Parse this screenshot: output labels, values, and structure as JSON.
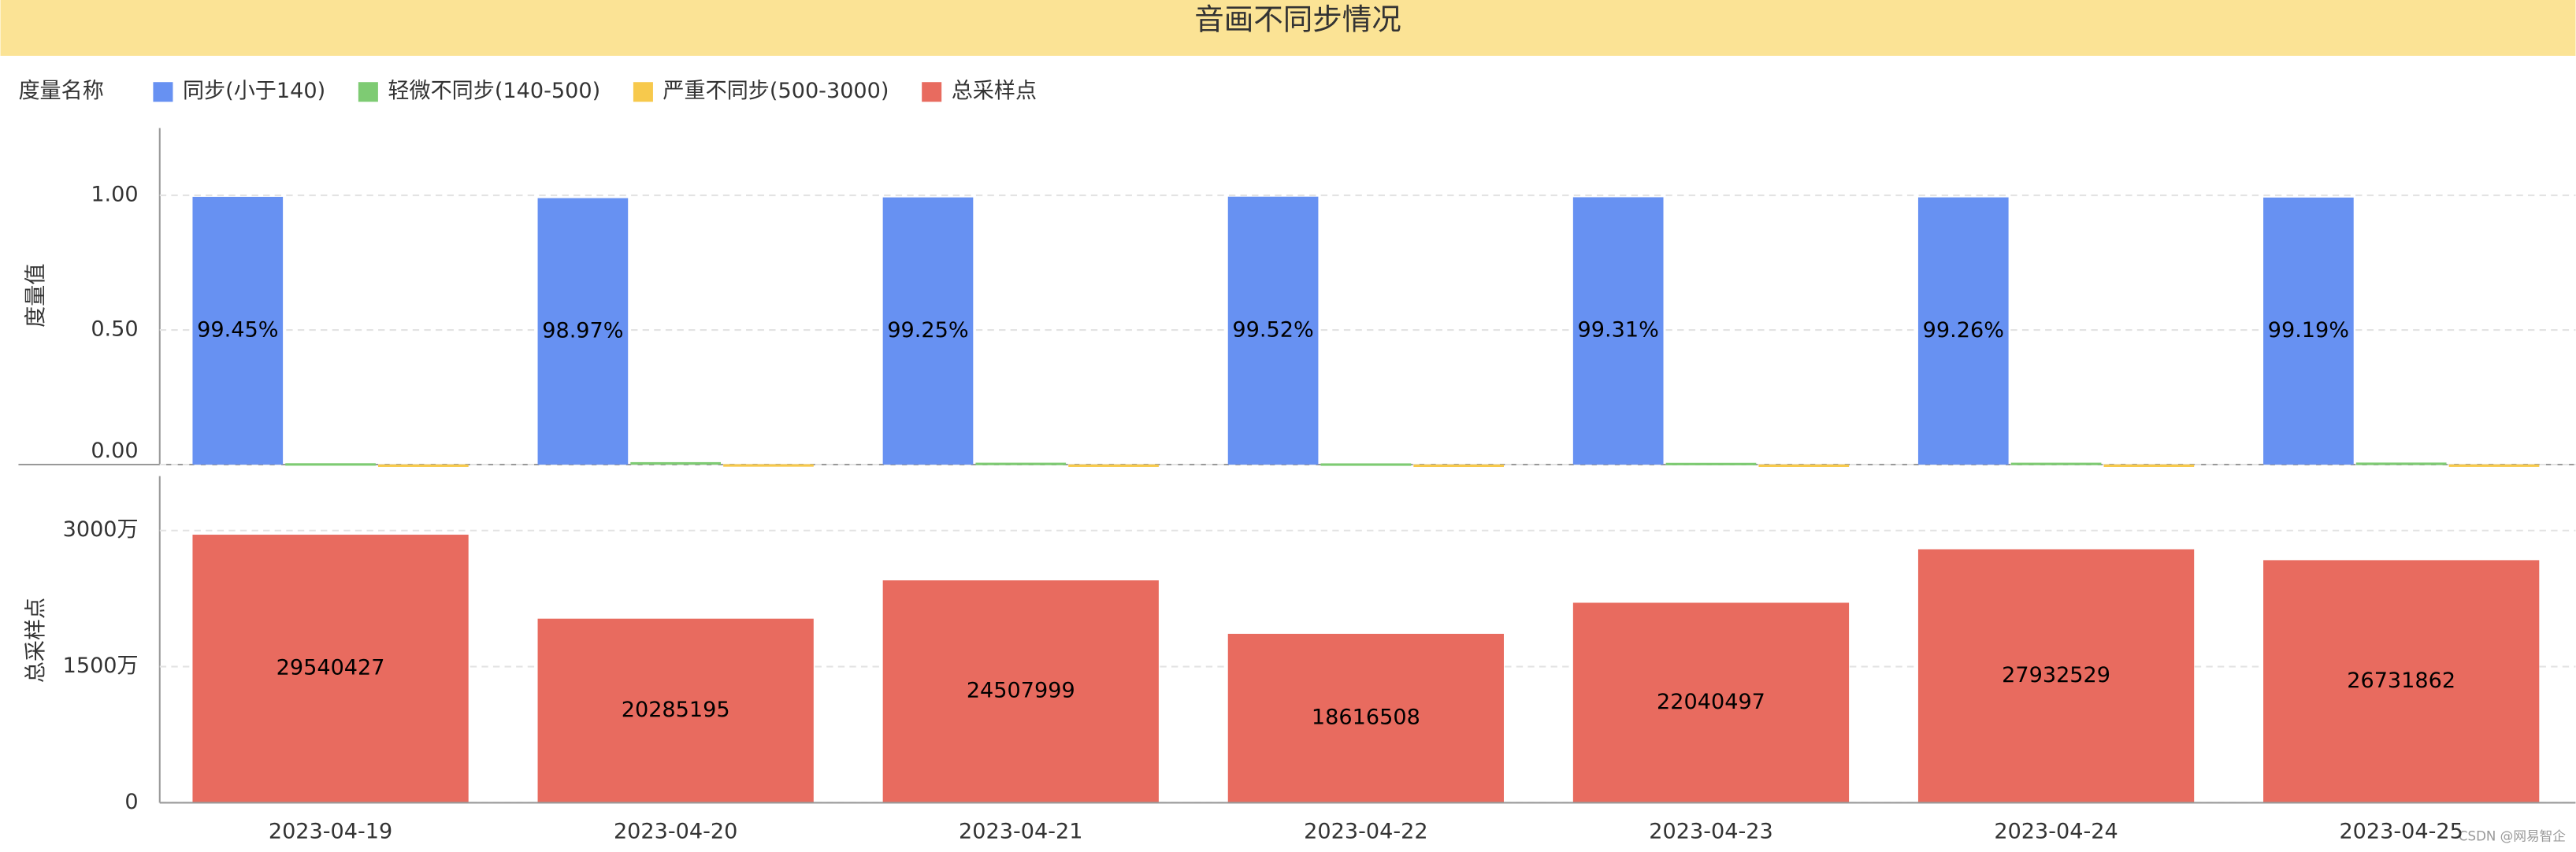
{
  "title": "音画不同步情况",
  "legend_title": "度量名称",
  "watermark": "CSDN @网易智企",
  "chart_data": [
    {
      "type": "bar",
      "y_label": "度量值",
      "ylim": [
        0,
        1.25
      ],
      "yticks": [
        {
          "value": 0,
          "label": "0.00"
        },
        {
          "value": 0.5,
          "label": "0.50"
        },
        {
          "value": 1,
          "label": "1.00"
        }
      ],
      "grid": true,
      "series": [
        {
          "name": "同步(小于140)",
          "color": "#6791f2",
          "values": [
            0.9945,
            0.9897,
            0.9925,
            0.9952,
            0.9931,
            0.9926,
            0.9919
          ],
          "value_labels": [
            "99.45%",
            "98.97%",
            "99.25%",
            "99.52%",
            "99.31%",
            "99.26%",
            "99.19%"
          ]
        },
        {
          "name": "轻微不同步(140-500)",
          "color": "#7ecb73",
          "values": [
            0.005,
            0.009,
            0.007,
            0.0045,
            0.0065,
            0.007,
            0.0075
          ]
        },
        {
          "name": "严重不同步(500-3000)",
          "color": "#f7c94c",
          "values": [
            0.0005,
            0.0013,
            0.0005,
            0.0003,
            0.0004,
            0.0004,
            0.0006
          ]
        }
      ]
    },
    {
      "type": "bar",
      "y_label": "总采样点",
      "categories": [
        "2023-04-19",
        "2023-04-20",
        "2023-04-21",
        "2023-04-22",
        "2023-04-23",
        "2023-04-24",
        "2023-04-25"
      ],
      "ylim": [
        0,
        36000000
      ],
      "yticks": [
        0,
        {
          "value": 15000000,
          "label": "1500万"
        },
        {
          "value": 30000000,
          "label": "3000万"
        }
      ],
      "grid": true,
      "series": [
        {
          "name": "总采样点",
          "color": "#e86b5f",
          "values": [
            29540427,
            20285195,
            24507999,
            18616508,
            22040497,
            27932529,
            26731862
          ]
        }
      ]
    }
  ]
}
